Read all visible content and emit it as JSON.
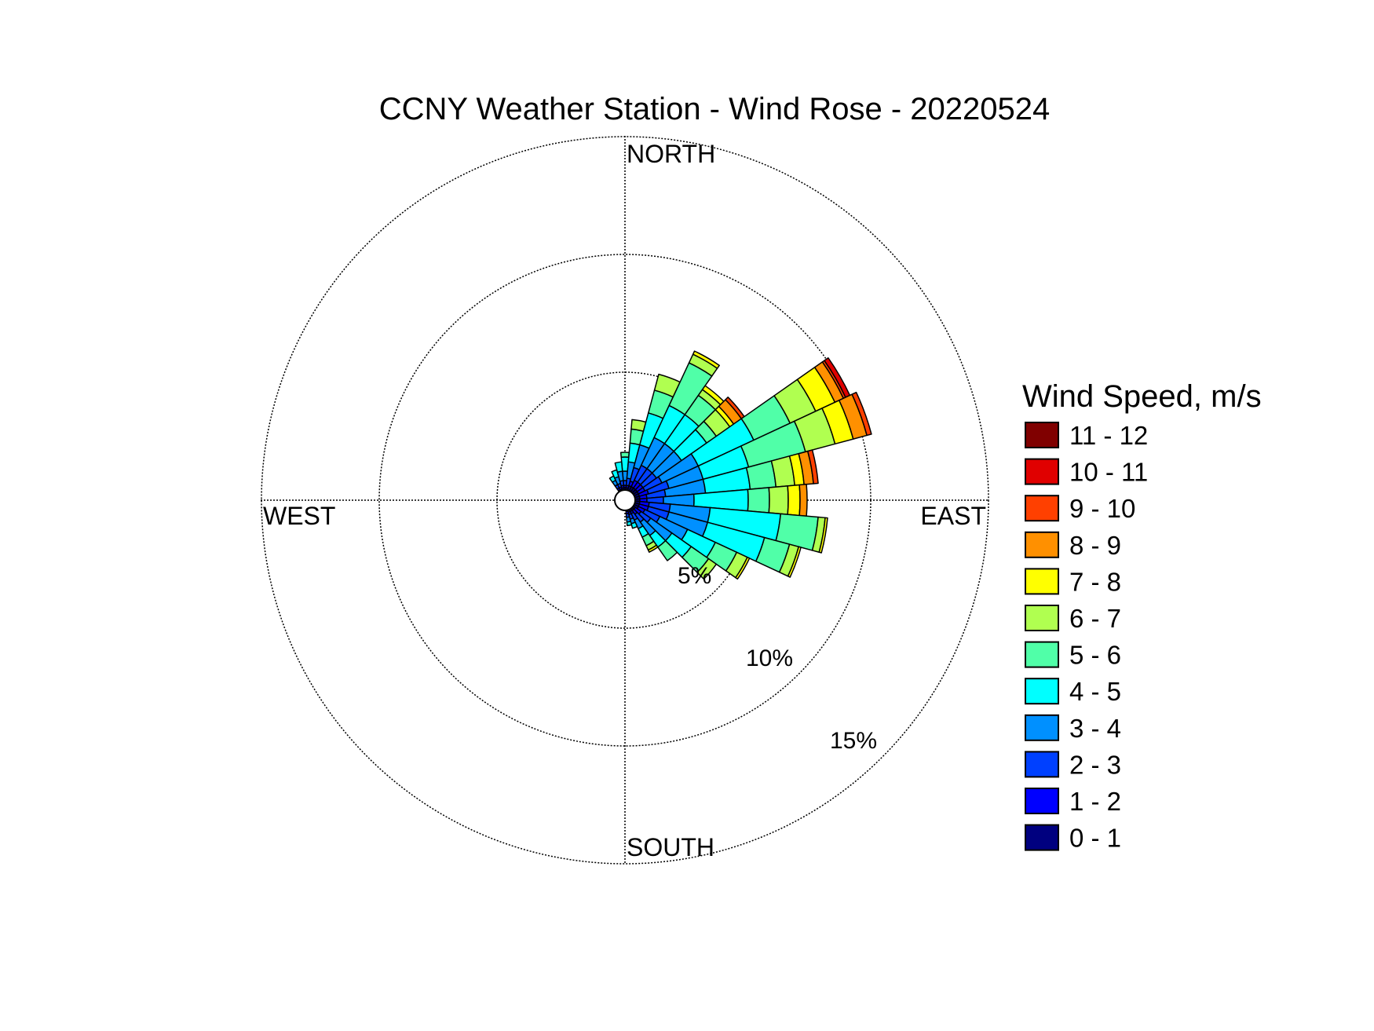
{
  "chart_data": {
    "type": "wind-rose",
    "title": "CCNY Weather Station - Wind Rose - 20220524",
    "directions": {
      "north": "NORTH",
      "south": "SOUTH",
      "east": "EAST",
      "west": "WEST"
    },
    "rings": [
      {
        "value": 5,
        "label": "5%"
      },
      {
        "value": 10,
        "label": "10%"
      },
      {
        "value": 15,
        "label": "15%"
      }
    ],
    "legend_title": "Wind Speed, m/s",
    "speed_bins": [
      {
        "label": "0 - 1",
        "color": "#00007f"
      },
      {
        "label": "1 - 2",
        "color": "#0000ff"
      },
      {
        "label": "2 - 3",
        "color": "#0040ff"
      },
      {
        "label": "3 - 4",
        "color": "#0090ff"
      },
      {
        "label": "4 - 5",
        "color": "#00ffff"
      },
      {
        "label": "5 - 6",
        "color": "#50ffa8"
      },
      {
        "label": "6 - 7",
        "color": "#b0ff50"
      },
      {
        "label": "7 - 8",
        "color": "#ffff00"
      },
      {
        "label": "8 - 9",
        "color": "#ff9000"
      },
      {
        "label": "9 - 10",
        "color": "#ff4000"
      },
      {
        "label": "10 - 11",
        "color": "#e00000"
      },
      {
        "label": "11 - 12",
        "color": "#800000"
      }
    ],
    "sectors": [
      {
        "direction": 0,
        "cumulative": [
          0.1,
          0.2,
          0.4,
          0.8,
          1.4,
          1.6
        ]
      },
      {
        "direction": 10,
        "cumulative": [
          0.1,
          0.2,
          0.5,
          1.2,
          2.0,
          2.6,
          3.0
        ]
      },
      {
        "direction": 20,
        "cumulative": [
          0.2,
          0.4,
          1.0,
          2.0,
          3.4,
          4.4,
          5.1
        ]
      },
      {
        "direction": 30,
        "cumulative": [
          0.2,
          0.5,
          1.2,
          2.5,
          4.0,
          6.0,
          6.4,
          6.55
        ]
      },
      {
        "direction": 40,
        "cumulative": [
          0.2,
          0.5,
          1.2,
          2.5,
          4.0,
          5.0,
          5.3,
          5.5
        ]
      },
      {
        "direction": 50,
        "cumulative": [
          0.2,
          0.5,
          1.2,
          2.5,
          3.8,
          4.3,
          5.0,
          5.2,
          5.6,
          5.75
        ]
      },
      {
        "direction": 60,
        "cumulative": [
          0.2,
          0.5,
          1.3,
          3.0,
          5.6,
          7.3,
          8.5,
          9.4,
          9.8,
          9.9,
          10.1
        ]
      },
      {
        "direction": 70,
        "cumulative": [
          0.2,
          0.6,
          1.5,
          3.0,
          5.0,
          7.5,
          8.8,
          9.6,
          10.2,
          10.4
        ]
      },
      {
        "direction": 80,
        "cumulative": [
          0.2,
          0.5,
          1.3,
          3.0,
          4.9,
          6.0,
          6.8,
          7.2,
          7.6,
          7.8
        ]
      },
      {
        "direction": 90,
        "cumulative": [
          0.2,
          0.5,
          1.2,
          2.5,
          4.8,
          5.7,
          6.5,
          7.0,
          7.3
        ]
      },
      {
        "direction": 100,
        "cumulative": [
          0.2,
          0.6,
          1.5,
          3.2,
          6.2,
          7.8,
          8.1,
          8.2
        ]
      },
      {
        "direction": 110,
        "cumulative": [
          0.2,
          0.6,
          1.5,
          3.2,
          5.7,
          6.8,
          7.2,
          7.3
        ]
      },
      {
        "direction": 120,
        "cumulative": [
          0.2,
          0.5,
          1.2,
          2.5,
          3.8,
          4.8,
          5.3,
          5.4
        ]
      },
      {
        "direction": 130,
        "cumulative": [
          0.1,
          0.4,
          0.9,
          2.0,
          3.0,
          3.9,
          4.3
        ]
      },
      {
        "direction": 140,
        "cumulative": [
          0.1,
          0.3,
          0.7,
          1.4,
          2.0,
          2.7
        ]
      },
      {
        "direction": 150,
        "cumulative": [
          0.1,
          0.2,
          0.5,
          0.9,
          1.3,
          1.7,
          1.9,
          2.0
        ]
      },
      {
        "direction": 160,
        "cumulative": [
          0.1,
          0.2,
          0.4,
          0.6,
          0.8
        ]
      },
      {
        "direction": 170,
        "cumulative": [
          0.05,
          0.15,
          0.3,
          0.5,
          0.65
        ]
      },
      {
        "direction": 330,
        "cumulative": [
          0.05,
          0.15,
          0.3,
          0.5,
          0.7
        ]
      },
      {
        "direction": 340,
        "cumulative": [
          0.05,
          0.15,
          0.3,
          0.6,
          0.9
        ]
      },
      {
        "direction": 350,
        "cumulative": [
          0.1,
          0.2,
          0.4,
          0.8,
          1.2
        ]
      }
    ]
  }
}
